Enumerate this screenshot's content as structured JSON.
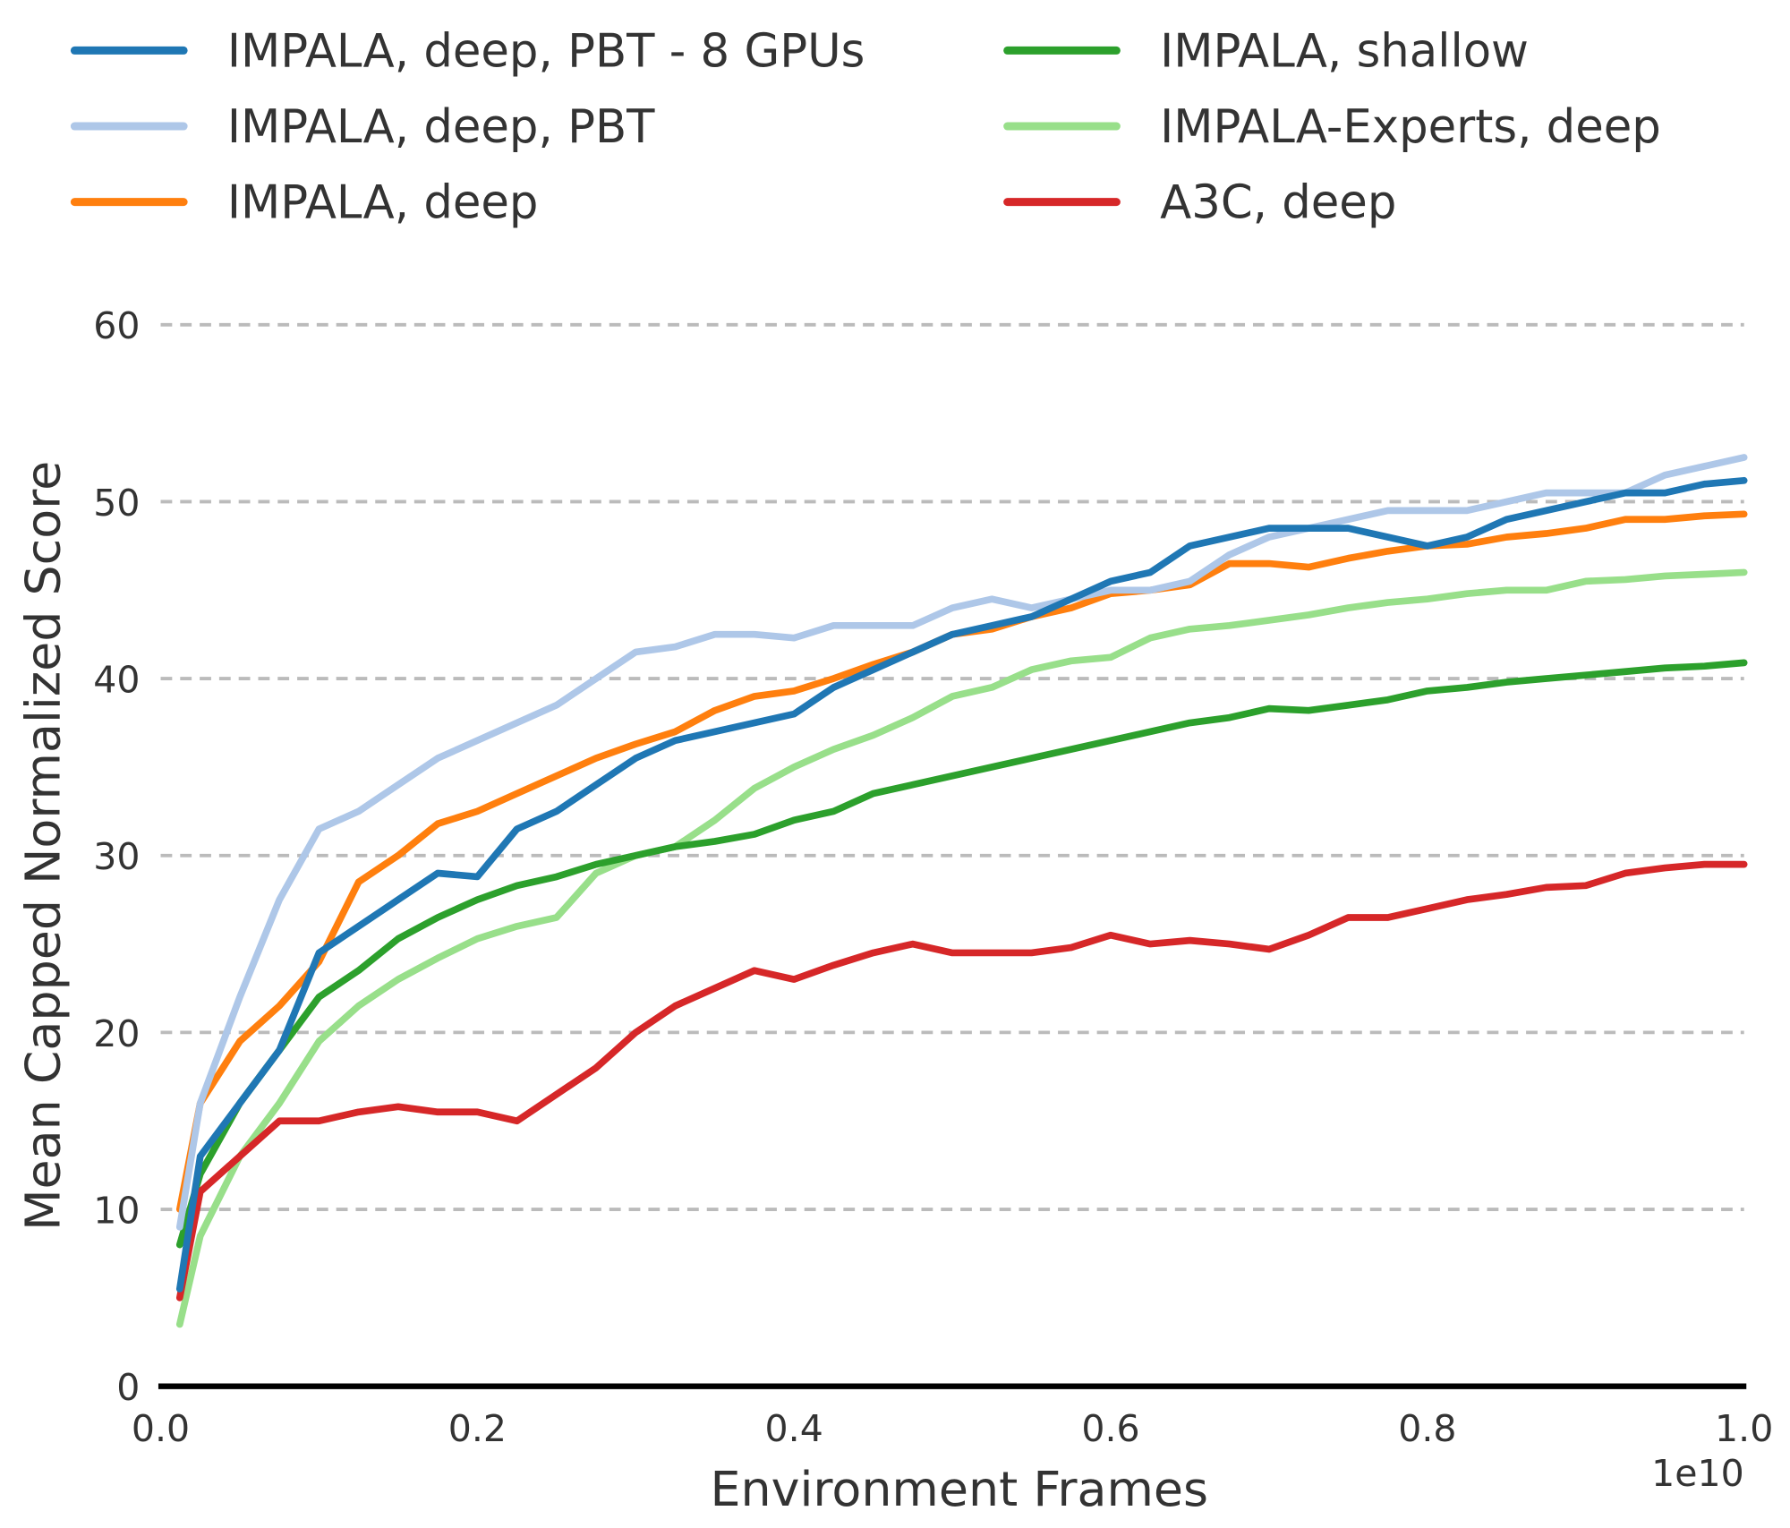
{
  "chart_data": {
    "type": "line",
    "title": "",
    "xlabel": "Environment Frames",
    "ylabel": "Mean Capped Normalized Score",
    "x_offset_label": "1e10",
    "xlim": [
      0.0,
      1.0
    ],
    "ylim": [
      0,
      60
    ],
    "xticks": [
      "0.0",
      "0.2",
      "0.4",
      "0.6",
      "0.8",
      "1.0"
    ],
    "yticks": [
      "0",
      "10",
      "20",
      "30",
      "40",
      "50",
      "60"
    ],
    "grid": "horizontal dashed",
    "legend_placement": "top, two columns",
    "x": [
      0.012,
      0.025,
      0.05,
      0.075,
      0.1,
      0.125,
      0.15,
      0.175,
      0.2,
      0.225,
      0.25,
      0.275,
      0.3,
      0.325,
      0.35,
      0.375,
      0.4,
      0.425,
      0.45,
      0.475,
      0.5,
      0.525,
      0.55,
      0.575,
      0.6,
      0.625,
      0.65,
      0.675,
      0.7,
      0.725,
      0.75,
      0.775,
      0.8,
      0.825,
      0.85,
      0.875,
      0.9,
      0.925,
      0.95,
      0.975,
      1.0
    ],
    "series": [
      {
        "name": "IMPALA, deep, PBT - 8 GPUs",
        "color": "#1f77b4",
        "values": [
          5.5,
          13,
          16,
          19,
          24.5,
          26,
          27.5,
          29,
          28.8,
          31.5,
          32.5,
          34,
          35.5,
          36.5,
          37,
          37.5,
          38,
          39.5,
          40.5,
          41.5,
          42.5,
          43,
          43.5,
          44.5,
          45.5,
          46,
          47.5,
          48,
          48.5,
          48.5,
          48.5,
          48,
          47.5,
          48,
          49,
          49.5,
          50,
          50.5,
          50.5,
          51,
          51.2
        ]
      },
      {
        "name": "IMPALA, deep, PBT",
        "color": "#aec7e8",
        "values": [
          9,
          16,
          22,
          27.5,
          31.5,
          32.5,
          34,
          35.5,
          36.5,
          37.5,
          38.5,
          40,
          41.5,
          41.8,
          42.5,
          42.5,
          42.3,
          43,
          43,
          43,
          44,
          44.5,
          44,
          44.5,
          45,
          45,
          45.5,
          47,
          48,
          48.5,
          49,
          49.5,
          49.5,
          49.5,
          50,
          50.5,
          50.5,
          50.5,
          51.5,
          52,
          52.5
        ]
      },
      {
        "name": "IMPALA, deep",
        "color": "#ff7f0e",
        "values": [
          10,
          16,
          19.5,
          21.5,
          24,
          28.5,
          30,
          31.8,
          32.5,
          33.5,
          34.5,
          35.5,
          36.3,
          37,
          38.2,
          39,
          39.3,
          40,
          40.8,
          41.5,
          42.5,
          42.8,
          43.5,
          44,
          44.8,
          45,
          45.3,
          46.5,
          46.5,
          46.3,
          46.8,
          47.2,
          47.5,
          47.6,
          48,
          48.2,
          48.5,
          49,
          49,
          49.2,
          49.3
        ]
      },
      {
        "name": "IMPALA, shallow",
        "color": "#2ca02c",
        "values": [
          8,
          12,
          16,
          19,
          22,
          23.5,
          25.3,
          26.5,
          27.5,
          28.3,
          28.8,
          29.5,
          30,
          30.5,
          30.8,
          31.2,
          32,
          32.5,
          33.5,
          34,
          34.5,
          35,
          35.5,
          36,
          36.5,
          37,
          37.5,
          37.8,
          38.3,
          38.2,
          38.5,
          38.8,
          39.3,
          39.5,
          39.8,
          40,
          40.2,
          40.4,
          40.6,
          40.7,
          40.9
        ]
      },
      {
        "name": "IMPALA-Experts, deep",
        "color": "#98df8a",
        "values": [
          3.5,
          8.5,
          13,
          16,
          19.5,
          21.5,
          23,
          24.2,
          25.3,
          26,
          26.5,
          29,
          30,
          30.5,
          32,
          33.8,
          35,
          36,
          36.8,
          37.8,
          39,
          39.5,
          40.5,
          41,
          41.2,
          42.3,
          42.8,
          43,
          43.3,
          43.6,
          44,
          44.3,
          44.5,
          44.8,
          45,
          45,
          45.5,
          45.6,
          45.8,
          45.9,
          46
        ]
      },
      {
        "name": "A3C, deep",
        "color": "#d62728",
        "values": [
          5,
          11,
          13,
          15,
          15,
          15.5,
          15.8,
          15.5,
          15.5,
          15,
          16.5,
          18,
          20,
          21.5,
          22.5,
          23.5,
          23,
          23.8,
          24.5,
          25,
          24.5,
          24.5,
          24.5,
          24.8,
          25.5,
          25,
          25.2,
          25,
          24.7,
          25.5,
          26.5,
          26.5,
          27,
          27.5,
          27.8,
          28.2,
          28.3,
          29,
          29.3,
          29.5,
          29.5
        ]
      }
    ]
  }
}
